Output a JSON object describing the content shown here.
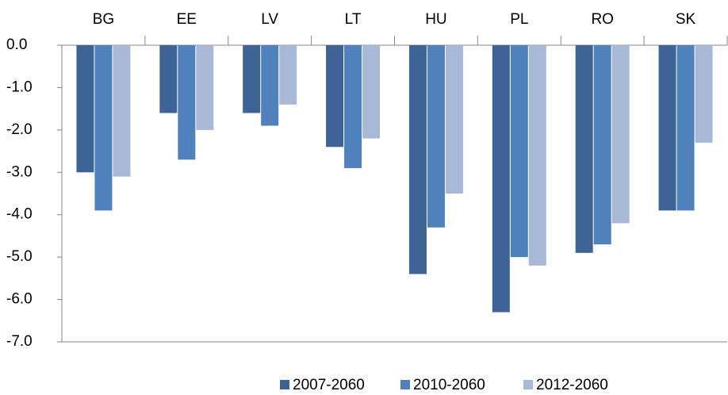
{
  "chart_data": {
    "type": "bar",
    "categories": [
      "BG",
      "EE",
      "LV",
      "LT",
      "HU",
      "PL",
      "RO",
      "SK"
    ],
    "series": [
      {
        "name": "2007-2060",
        "color": "#3e6496",
        "values": [
          -3.0,
          -1.6,
          -1.6,
          -2.4,
          -5.4,
          -6.3,
          -4.9,
          -3.9
        ]
      },
      {
        "name": "2010-2060",
        "color": "#4f81bd",
        "values": [
          -3.9,
          -2.7,
          -1.9,
          -2.9,
          -4.3,
          -5.0,
          -4.7,
          -3.9
        ]
      },
      {
        "name": "2012-2060",
        "color": "#a8b9d8",
        "values": [
          -3.1,
          -2.0,
          -1.4,
          -2.2,
          -3.5,
          -5.2,
          -4.2,
          -2.3
        ]
      }
    ],
    "ylim": [
      -7,
      0
    ],
    "yticks": [
      {
        "value": 0,
        "label": "0.0"
      },
      {
        "value": -1,
        "label": "-1.0"
      },
      {
        "value": -2,
        "label": "-2.0"
      },
      {
        "value": -3,
        "label": "-3.0"
      },
      {
        "value": -4,
        "label": "-4.0"
      },
      {
        "value": -5,
        "label": "-5.0"
      },
      {
        "value": -6,
        "label": "-6.0"
      },
      {
        "value": -7,
        "label": "-7.0"
      }
    ],
    "legend": "bottom"
  }
}
